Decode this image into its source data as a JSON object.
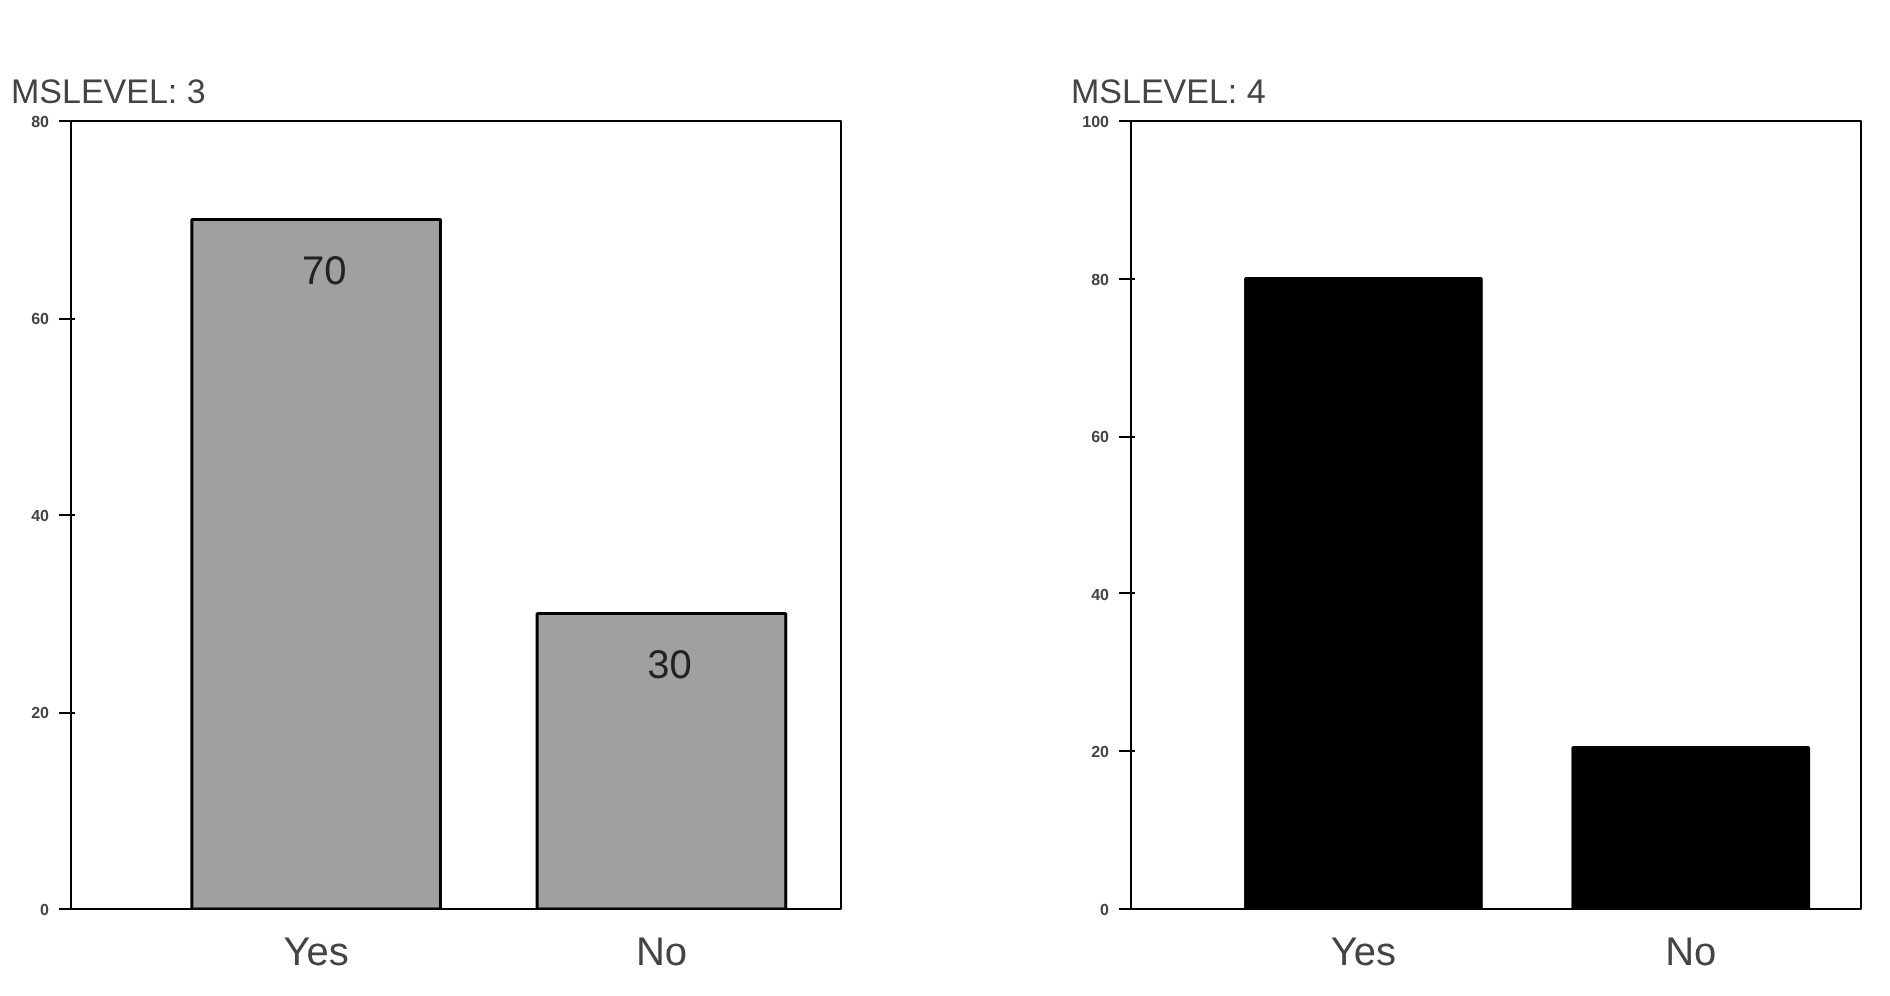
{
  "chart_data": [
    {
      "type": "bar",
      "title": "MSLEVEL: 3",
      "categories": [
        "Yes",
        "No"
      ],
      "values": [
        70,
        30
      ],
      "color": "#a0a0a0",
      "ylim": [
        0,
        80
      ],
      "yticks": [
        0,
        20,
        40,
        60,
        80
      ],
      "data_labels": true,
      "grid": false
    },
    {
      "type": "bar",
      "title": "MSLEVEL: 4",
      "categories": [
        "Yes",
        "No"
      ],
      "values": [
        80,
        20.5
      ],
      "color": "#000000",
      "ylim": [
        0,
        100
      ],
      "yticks": [
        0,
        20,
        40,
        60,
        80,
        100
      ],
      "grid": false
    }
  ]
}
